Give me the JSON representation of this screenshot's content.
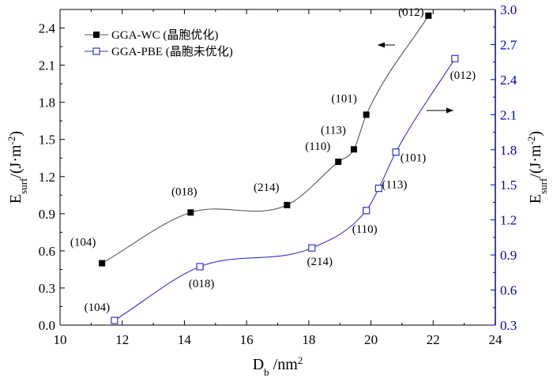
{
  "chart_data": {
    "type": "scatter",
    "title": "",
    "xlabel": {
      "main": "D",
      "sub": "b",
      "rest": " /nm",
      "sup": "2"
    },
    "ylabel_left": {
      "main": "E",
      "sub": "surf",
      "rest": "/(J·m",
      "sup": "-2",
      "close": ")"
    },
    "ylabel_right": {
      "main": "E",
      "sub": "surf",
      "rest": "/(J·m",
      "sup": "-2",
      "close": ")"
    },
    "x_axis": {
      "range": [
        10,
        24
      ],
      "ticks": [
        10,
        12,
        14,
        16,
        18,
        20,
        22,
        24
      ],
      "tick_labels": [
        "10",
        "12",
        "14",
        "16",
        "18",
        "20",
        "22",
        "24"
      ]
    },
    "y_left": {
      "range": [
        0.0,
        2.55
      ],
      "ticks": [
        0.0,
        0.3,
        0.6,
        0.9,
        1.2,
        1.5,
        1.8,
        2.1,
        2.4
      ],
      "tick_labels": [
        "0.0",
        "0.3",
        "0.6",
        "0.9",
        "1.2",
        "1.5",
        "1.8",
        "2.1",
        "2.4"
      ],
      "color": "#000000"
    },
    "y_right": {
      "range": [
        0.3,
        3.0
      ],
      "ticks": [
        0.3,
        0.6,
        0.9,
        1.2,
        1.5,
        1.8,
        2.1,
        2.4,
        2.7,
        3.0
      ],
      "tick_labels": [
        "0.3",
        "0.6",
        "0.9",
        "1.2",
        "1.5",
        "1.8",
        "2.1",
        "2.4",
        "2.7",
        "3.0"
      ],
      "color": "#0000cc"
    },
    "legend": {
      "position": "top-left"
    },
    "series": [
      {
        "name": "GGA-WC (晶胞优化)",
        "axis": "left",
        "color": "#000000",
        "line_color": "#555555",
        "marker": "filled-square",
        "x": [
          11.35,
          14.2,
          17.3,
          18.95,
          19.45,
          19.85,
          21.85
        ],
        "y": [
          0.5,
          0.91,
          0.97,
          1.32,
          1.42,
          1.7,
          2.5
        ],
        "labels": [
          "(104)",
          "(018)",
          "(214)",
          "(110)",
          "(113)",
          "(101)",
          "(012)"
        ]
      },
      {
        "name": "GGA-PBE (晶胞未优化)",
        "axis": "right",
        "color": "#3333cc",
        "line_color": "#3333cc",
        "marker": "open-square",
        "x": [
          11.75,
          14.5,
          18.1,
          19.85,
          20.25,
          20.8,
          22.7
        ],
        "y": [
          0.34,
          0.8,
          0.96,
          1.28,
          1.47,
          1.78,
          2.58
        ],
        "labels": [
          "(104)",
          "(018)",
          "(214)",
          "(110)",
          "(113)",
          "(101)",
          "(012)"
        ]
      }
    ],
    "annotations": [
      {
        "type": "arrow",
        "direction": "left",
        "meaning": "points to left axis (GGA-WC)"
      },
      {
        "type": "arrow",
        "direction": "right",
        "meaning": "points to right axis (GGA-PBE)"
      }
    ]
  }
}
